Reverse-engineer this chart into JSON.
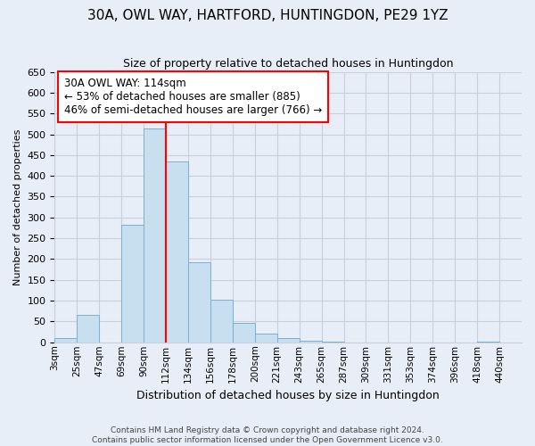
{
  "title": "30A, OWL WAY, HARTFORD, HUNTINGDON, PE29 1YZ",
  "subtitle": "Size of property relative to detached houses in Huntingdon",
  "xlabel": "Distribution of detached houses by size in Huntingdon",
  "ylabel": "Number of detached properties",
  "bar_labels": [
    "3sqm",
    "25sqm",
    "47sqm",
    "69sqm",
    "90sqm",
    "112sqm",
    "134sqm",
    "156sqm",
    "178sqm",
    "200sqm",
    "221sqm",
    "243sqm",
    "265sqm",
    "287sqm",
    "309sqm",
    "331sqm",
    "353sqm",
    "374sqm",
    "396sqm",
    "418sqm",
    "440sqm"
  ],
  "bar_values": [
    10,
    65,
    0,
    283,
    515,
    435,
    192,
    102,
    46,
    20,
    10,
    3,
    1,
    0,
    0,
    0,
    0,
    0,
    0,
    2,
    0
  ],
  "bar_color": "#c8dff0",
  "bar_edge_color": "#7ab0d0",
  "property_line_x_label": "112sqm",
  "property_line_color": "red",
  "annotation_line1": "30A OWL WAY: 114sqm",
  "annotation_line2": "← 53% of detached houses are smaller (885)",
  "annotation_line3": "46% of semi-detached houses are larger (766) →",
  "ylim": [
    0,
    650
  ],
  "yticks": [
    0,
    50,
    100,
    150,
    200,
    250,
    300,
    350,
    400,
    450,
    500,
    550,
    600,
    650
  ],
  "footer_text": "Contains HM Land Registry data © Crown copyright and database right 2024.\nContains public sector information licensed under the Open Government Licence v3.0.",
  "bg_color": "#e8eef8",
  "grid_color": "#c8d0e0",
  "title_fontsize": 11,
  "subtitle_fontsize": 9,
  "ylabel_fontsize": 8,
  "xlabel_fontsize": 9
}
